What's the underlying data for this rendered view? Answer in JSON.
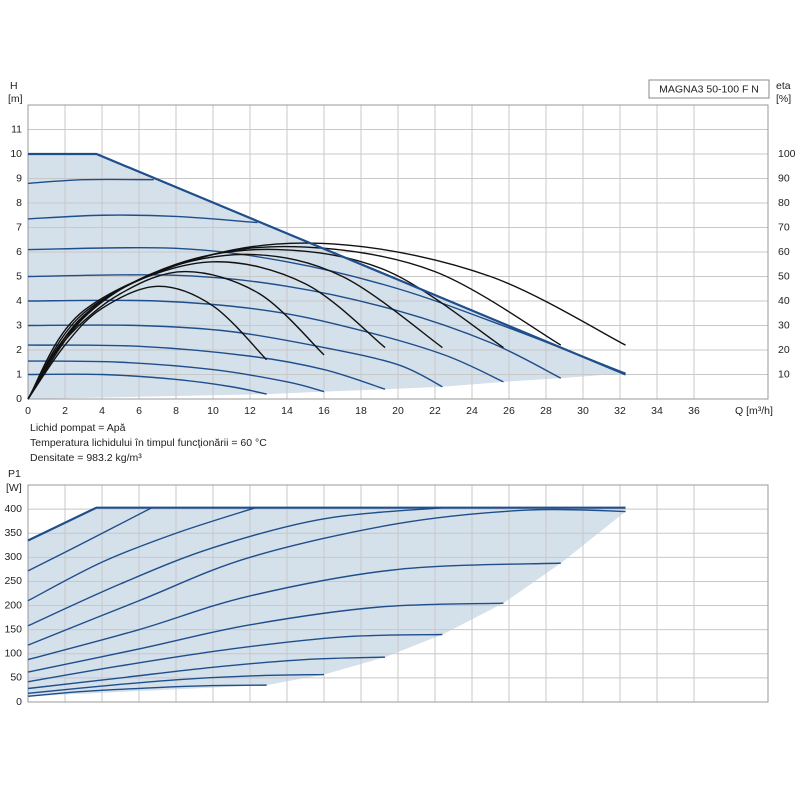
{
  "chart_data": [
    {
      "type": "line",
      "title": "MAGNA3 50-100 F N",
      "ylabel": "H",
      "yunit": "[m]",
      "y2label": "eta",
      "y2unit": "[%]",
      "xlabel": "Q [m³/h]",
      "notes": [
        "Lichid pompat = Apă",
        "Temperatura lichidului în timpul funcţionării = 60 °C",
        "Densitate = 983.2 kg/m³"
      ],
      "xlim": [
        0,
        40
      ],
      "ylim": [
        0,
        12
      ],
      "y2lim": [
        0,
        120
      ],
      "xticks": [
        0,
        2,
        4,
        6,
        8,
        10,
        12,
        14,
        16,
        18,
        20,
        22,
        24,
        26,
        28,
        30,
        32,
        34,
        36
      ],
      "yticks": [
        0,
        1,
        2,
        3,
        4,
        5,
        6,
        7,
        8,
        9,
        10,
        11
      ],
      "y2ticks": [
        10,
        20,
        30,
        40,
        50,
        60,
        70,
        80,
        90,
        100
      ],
      "grid": true,
      "area": {
        "color": "#d4e0ea",
        "x": [
          0,
          3.7,
          32.3,
          32.3,
          28.8,
          25.7,
          22.4,
          19.3,
          16,
          12.9,
          0
        ],
        "values": [
          10,
          10,
          1.0,
          1.05,
          0.85,
          0.7,
          0.5,
          0.4,
          0.3,
          0.2,
          0
        ]
      },
      "envelope": {
        "color": "#1f4e8c",
        "x": [
          0,
          3.7,
          32.3
        ],
        "values": [
          10,
          10,
          1.0
        ]
      },
      "series": [
        {
          "color": "#1f4e8c",
          "x": [
            0,
            3,
            6.8
          ],
          "values": [
            8.8,
            8.95,
            8.95
          ]
        },
        {
          "color": "#1f4e8c",
          "x": [
            0,
            4,
            8,
            12.4
          ],
          "values": [
            7.35,
            7.5,
            7.45,
            7.2
          ]
        },
        {
          "color": "#1f4e8c",
          "x": [
            0,
            8,
            14,
            20,
            26,
            32.3
          ],
          "values": [
            6.1,
            6.15,
            5.6,
            4.5,
            2.9,
            1.05
          ]
        },
        {
          "color": "#1f4e8c",
          "x": [
            0,
            8,
            14,
            20,
            25,
            28.8
          ],
          "values": [
            5.0,
            5.05,
            4.6,
            3.6,
            2.3,
            0.85
          ]
        },
        {
          "color": "#1f4e8c",
          "x": [
            0,
            7,
            13,
            18,
            22.5,
            25.7
          ],
          "values": [
            4.0,
            4.0,
            3.6,
            2.8,
            1.8,
            0.7
          ]
        },
        {
          "color": "#1f4e8c",
          "x": [
            0,
            6,
            11,
            16,
            20,
            22.4
          ],
          "values": [
            3.0,
            3.0,
            2.75,
            2.1,
            1.4,
            0.5
          ]
        },
        {
          "color": "#1f4e8c",
          "x": [
            0,
            6,
            12,
            16,
            19.3
          ],
          "values": [
            2.2,
            2.15,
            1.75,
            1.2,
            0.4
          ]
        },
        {
          "color": "#1f4e8c",
          "x": [
            0,
            5,
            10,
            14,
            16
          ],
          "values": [
            1.55,
            1.5,
            1.2,
            0.7,
            0.3
          ]
        },
        {
          "color": "#1f4e8c",
          "x": [
            0,
            4,
            8,
            11,
            12.9
          ],
          "values": [
            1.0,
            1.0,
            0.8,
            0.5,
            0.2
          ]
        },
        {
          "color": "#111111",
          "axis": "y2",
          "x": [
            0,
            2,
            4,
            7,
            10,
            12.9
          ],
          "values": [
            0,
            22,
            37,
            46,
            38,
            16
          ]
        },
        {
          "color": "#111111",
          "axis": "y2",
          "x": [
            0,
            2,
            5,
            8.5,
            12.5,
            16
          ],
          "values": [
            0,
            24,
            43,
            52,
            43,
            18
          ]
        },
        {
          "color": "#111111",
          "axis": "y2",
          "x": [
            0,
            2,
            5,
            10,
            15,
            19.3
          ],
          "values": [
            0,
            25,
            45,
            56,
            47,
            21
          ]
        },
        {
          "color": "#111111",
          "axis": "y2",
          "x": [
            0,
            3,
            7,
            12,
            17,
            22.4
          ],
          "values": [
            0,
            33,
            52,
            59,
            50,
            21
          ]
        },
        {
          "color": "#111111",
          "axis": "y2",
          "x": [
            0,
            3,
            8,
            13.5,
            19.5,
            25.7
          ],
          "values": [
            0,
            34,
            55,
            61,
            52,
            21
          ]
        },
        {
          "color": "#111111",
          "axis": "y2",
          "x": [
            0,
            3,
            9,
            15,
            22,
            28.8
          ],
          "values": [
            0,
            35,
            57,
            62,
            52,
            22
          ]
        },
        {
          "color": "#111111",
          "axis": "y2",
          "x": [
            0,
            3,
            10,
            17,
            25,
            32.3
          ],
          "values": [
            0,
            36,
            59,
            63,
            50,
            22
          ]
        }
      ]
    },
    {
      "type": "line",
      "ylabel": "P1",
      "yunit": "[W]",
      "xlim": [
        0,
        40
      ],
      "ylim": [
        0,
        450
      ],
      "xticks": [
        0,
        2,
        4,
        6,
        8,
        10,
        12,
        14,
        16,
        18,
        20,
        22,
        24,
        26,
        28,
        30,
        32,
        34,
        36
      ],
      "yticks": [
        0,
        50,
        100,
        150,
        200,
        250,
        300,
        350,
        400
      ],
      "grid": true,
      "area": {
        "color": "#d4e0ea",
        "x": [
          0,
          3.7,
          32.3,
          32.3,
          28.8,
          25.7,
          22.4,
          19.3,
          16,
          12.9,
          0
        ],
        "values": [
          335,
          403,
          403,
          395,
          288,
          205,
          140,
          93,
          57,
          35,
          12
        ]
      },
      "envelope": {
        "color": "#1f4e8c",
        "x": [
          0,
          3.7,
          32.3
        ],
        "values": [
          335,
          403,
          403
        ]
      },
      "series": [
        {
          "color": "#1f4e8c",
          "x": [
            0,
            3,
            6.7
          ],
          "values": [
            272,
            330,
            403
          ]
        },
        {
          "color": "#1f4e8c",
          "x": [
            0,
            4,
            8,
            12.3
          ],
          "values": [
            210,
            290,
            350,
            403
          ]
        },
        {
          "color": "#1f4e8c",
          "x": [
            0,
            5,
            10,
            16,
            22.5
          ],
          "values": [
            158,
            245,
            320,
            380,
            403
          ]
        },
        {
          "color": "#1f4e8c",
          "x": [
            0,
            6,
            12,
            20,
            27,
            32.3
          ],
          "values": [
            118,
            210,
            300,
            370,
            398,
            395
          ]
        },
        {
          "color": "#1f4e8c",
          "x": [
            0,
            6,
            12,
            20,
            28.8
          ],
          "values": [
            88,
            150,
            220,
            275,
            288
          ]
        },
        {
          "color": "#1f4e8c",
          "x": [
            0,
            6,
            12,
            19,
            25.7
          ],
          "values": [
            62,
            110,
            160,
            197,
            205
          ]
        },
        {
          "color": "#1f4e8c",
          "x": [
            0,
            5,
            11,
            17,
            22.4
          ],
          "values": [
            42,
            75,
            110,
            135,
            140
          ]
        },
        {
          "color": "#1f4e8c",
          "x": [
            0,
            5,
            10,
            15,
            19.3
          ],
          "values": [
            28,
            50,
            72,
            88,
            93
          ]
        },
        {
          "color": "#1f4e8c",
          "x": [
            0,
            4,
            8,
            12,
            16
          ],
          "values": [
            18,
            33,
            46,
            54,
            57
          ]
        },
        {
          "color": "#1f4e8c",
          "x": [
            0,
            3,
            7,
            10,
            12.9
          ],
          "values": [
            12,
            22,
            30,
            34,
            35
          ]
        }
      ]
    }
  ]
}
